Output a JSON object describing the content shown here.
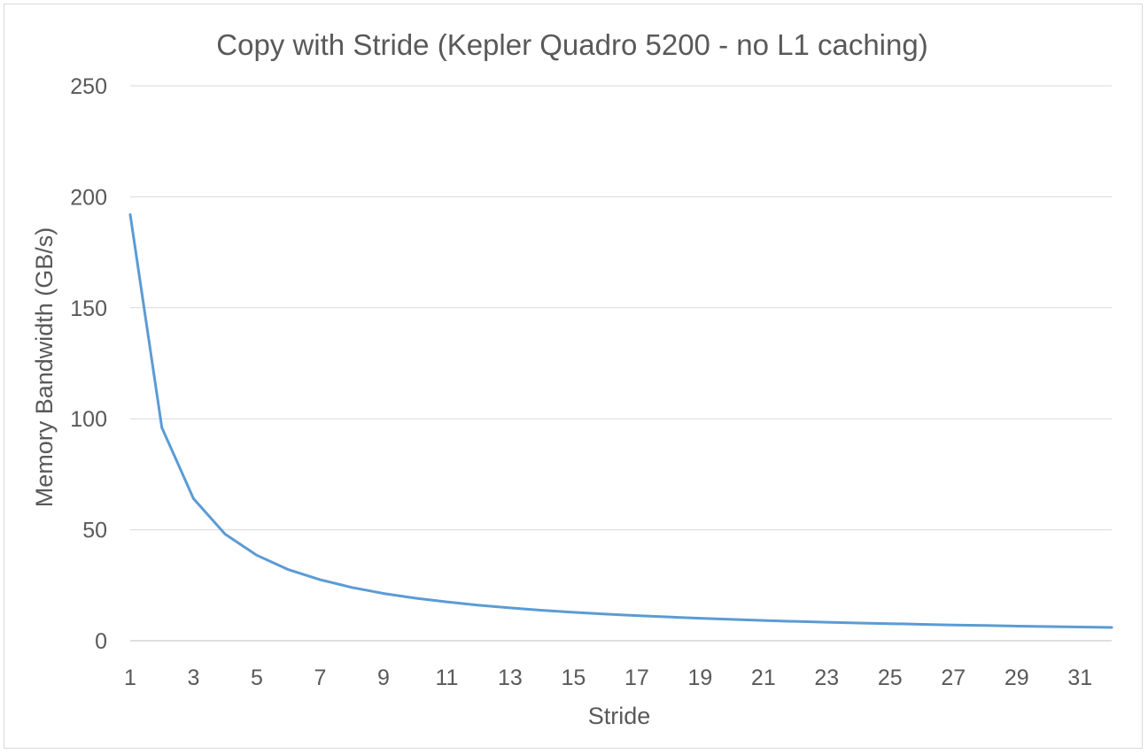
{
  "chart_data": {
    "type": "line",
    "title": "Copy with Stride (Kepler Quadro 5200 - no L1 caching)",
    "xlabel": "Stride",
    "ylabel": "Memory Bandwidth (GB/s)",
    "ylim": [
      0,
      250
    ],
    "yticks": [
      0,
      50,
      100,
      150,
      200,
      250
    ],
    "xlim": [
      1,
      32
    ],
    "xticks": [
      1,
      3,
      5,
      7,
      9,
      11,
      13,
      15,
      17,
      19,
      21,
      23,
      25,
      27,
      29,
      31
    ],
    "grid": "horizontal",
    "legend": "none",
    "series": [
      {
        "color": "#5b9bd5",
        "x": [
          1,
          2,
          3,
          4,
          5,
          6,
          7,
          8,
          9,
          10,
          11,
          12,
          13,
          14,
          15,
          16,
          17,
          18,
          19,
          20,
          21,
          22,
          23,
          24,
          25,
          26,
          27,
          28,
          29,
          30,
          31,
          32
        ],
        "values": [
          192,
          96,
          64,
          48,
          38.5,
          32,
          27.5,
          24,
          21.3,
          19.2,
          17.5,
          16,
          14.8,
          13.7,
          12.8,
          12,
          11.3,
          10.7,
          10.1,
          9.6,
          9.1,
          8.7,
          8.3,
          8,
          7.7,
          7.4,
          7.1,
          6.9,
          6.6,
          6.4,
          6.2,
          6
        ]
      }
    ]
  }
}
